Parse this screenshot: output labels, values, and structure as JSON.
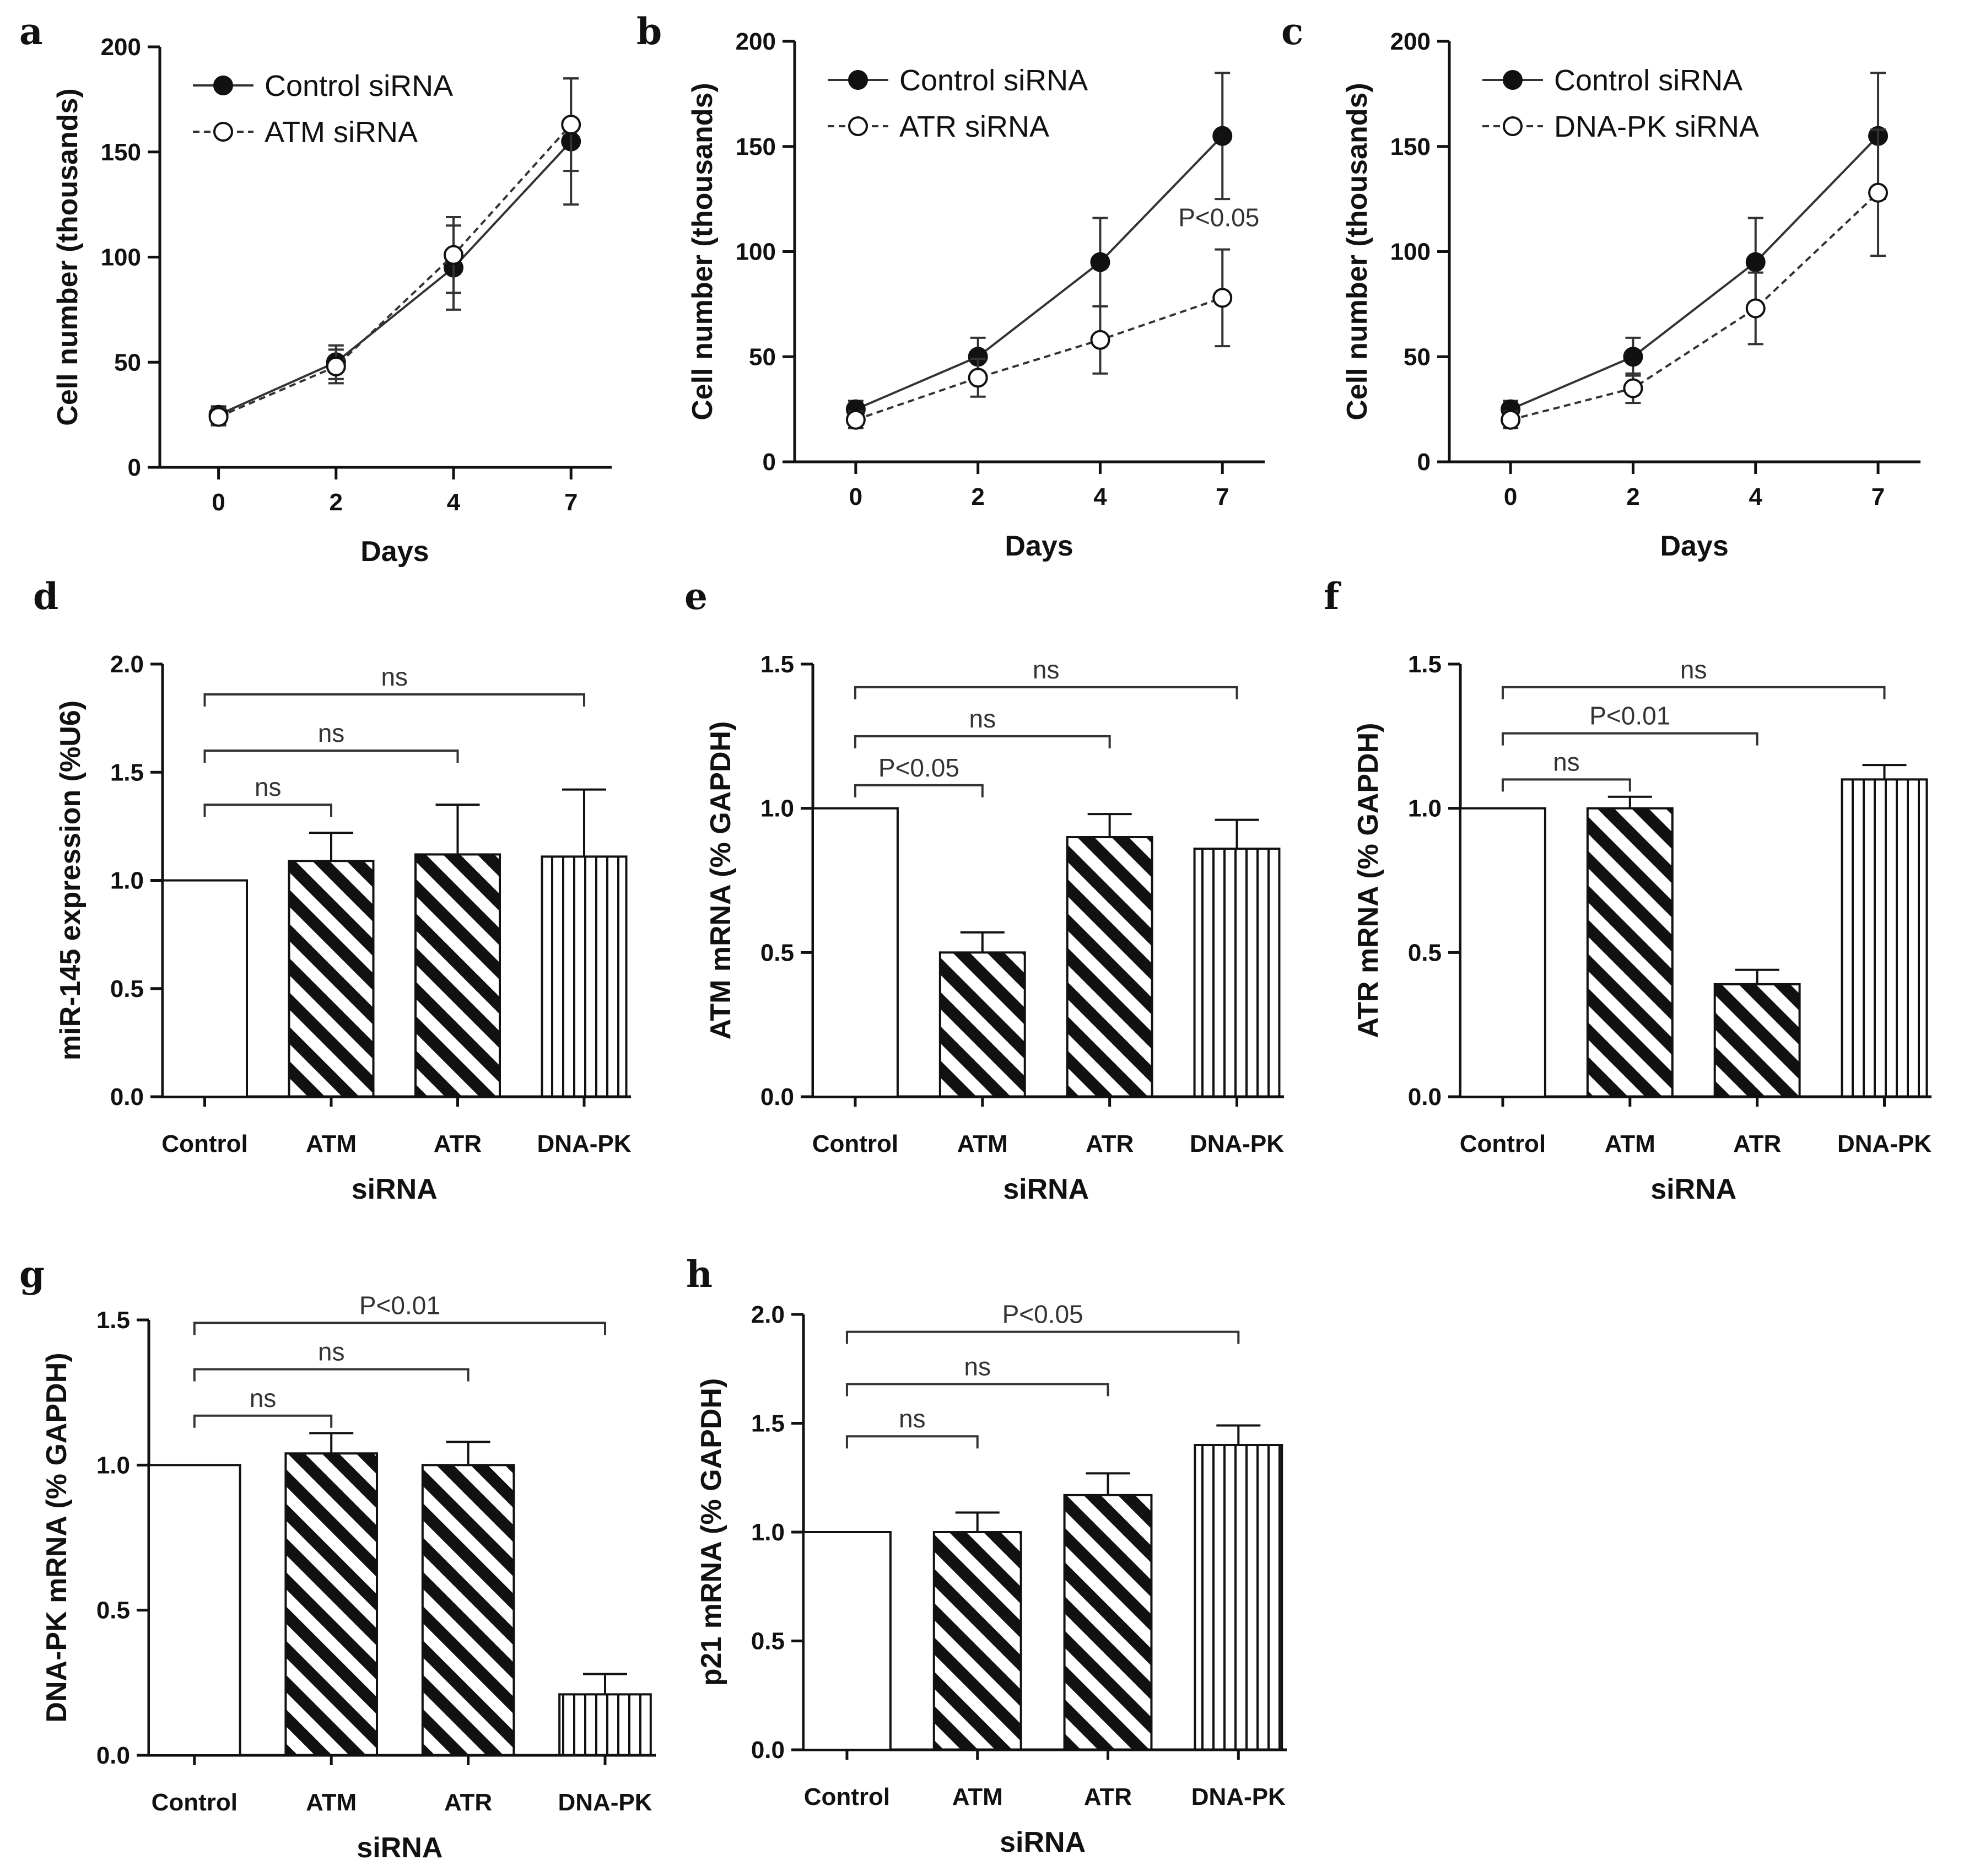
{
  "figure": {
    "colors": {
      "ink": "#111111",
      "line": "#333333",
      "background": "#ffffff"
    },
    "bar_patterns": [
      "open-bar",
      "diagonal-hatch",
      "diagonal-hatch",
      "vertical-hatch"
    ]
  },
  "chart_data": [
    {
      "panel": "a",
      "type": "line",
      "xlabel": "Days",
      "ylabel": "Cell number (thousands)",
      "categories": [
        "0",
        "2",
        "4",
        "7"
      ],
      "ylim": [
        0,
        200
      ],
      "yticks": [
        "0",
        "50",
        "100",
        "150",
        "200"
      ],
      "series": [
        {
          "name": "Control siRNA",
          "marker": "filled-circle",
          "line": "solid",
          "values": [
            25,
            50,
            95,
            155
          ],
          "errors": [
            4,
            8,
            20,
            30
          ]
        },
        {
          "name": "ATM siRNA",
          "marker": "open-circle",
          "line": "dashed",
          "values": [
            24,
            48,
            101,
            163
          ],
          "errors": [
            4,
            8,
            18,
            22
          ]
        }
      ],
      "annotations": []
    },
    {
      "panel": "b",
      "type": "line",
      "xlabel": "Days",
      "ylabel": "Cell number (thousands)",
      "categories": [
        "0",
        "2",
        "4",
        "7"
      ],
      "ylim": [
        0,
        200
      ],
      "yticks": [
        "0",
        "50",
        "100",
        "150",
        "200"
      ],
      "series": [
        {
          "name": "Control siRNA",
          "marker": "filled-circle",
          "line": "solid",
          "values": [
            25,
            50,
            95,
            155
          ],
          "errors": [
            4,
            9,
            21,
            30
          ]
        },
        {
          "name": "ATR siRNA",
          "marker": "open-circle",
          "line": "dashed",
          "values": [
            20,
            40,
            58,
            78
          ],
          "errors": [
            4,
            9,
            16,
            23
          ]
        }
      ],
      "annotations": [
        {
          "text": "P<0.05",
          "x_index": 3,
          "y": 112
        }
      ]
    },
    {
      "panel": "c",
      "type": "line",
      "xlabel": "Days",
      "ylabel": "Cell number (thousands)",
      "categories": [
        "0",
        "2",
        "4",
        "7"
      ],
      "ylim": [
        0,
        200
      ],
      "yticks": [
        "0",
        "50",
        "100",
        "150",
        "200"
      ],
      "series": [
        {
          "name": "Control siRNA",
          "marker": "filled-circle",
          "line": "solid",
          "values": [
            25,
            50,
            95,
            155
          ],
          "errors": [
            4,
            9,
            21,
            30
          ]
        },
        {
          "name": "DNA-PK siRNA",
          "marker": "open-circle",
          "line": "dashed",
          "values": [
            20,
            35,
            73,
            128
          ],
          "errors": [
            4,
            7,
            17,
            30
          ]
        }
      ],
      "annotations": []
    },
    {
      "panel": "d",
      "type": "bar",
      "xlabel": "siRNA",
      "ylabel": "miR-145 expression (%U6)",
      "categories": [
        "Control",
        "ATM",
        "ATR",
        "DNA-PK"
      ],
      "values": [
        1.0,
        1.09,
        1.12,
        1.11
      ],
      "errors": [
        0,
        0.13,
        0.23,
        0.31
      ],
      "ylim": [
        0,
        2.0
      ],
      "yticks": [
        "0.0",
        "0.5",
        "1.0",
        "1.5",
        "2.0"
      ],
      "brackets": [
        {
          "from": 0,
          "to": 1,
          "y": 1.35,
          "label": "ns"
        },
        {
          "from": 0,
          "to": 2,
          "y": 1.6,
          "label": "ns"
        },
        {
          "from": 0,
          "to": 3,
          "y": 1.86,
          "label": "ns"
        }
      ]
    },
    {
      "panel": "e",
      "type": "bar",
      "xlabel": "siRNA",
      "ylabel": "ATM mRNA (% GAPDH)",
      "categories": [
        "Control",
        "ATM",
        "ATR",
        "DNA-PK"
      ],
      "values": [
        1.0,
        0.5,
        0.9,
        0.86
      ],
      "errors": [
        0,
        0.07,
        0.08,
        0.1
      ],
      "ylim": [
        0,
        1.5
      ],
      "yticks": [
        "0.0",
        "0.5",
        "1.0",
        "1.5"
      ],
      "brackets": [
        {
          "from": 0,
          "to": 1,
          "y": 1.08,
          "label": "P<0.05"
        },
        {
          "from": 0,
          "to": 2,
          "y": 1.25,
          "label": "ns"
        },
        {
          "from": 0,
          "to": 3,
          "y": 1.42,
          "label": "ns"
        }
      ]
    },
    {
      "panel": "f",
      "type": "bar",
      "xlabel": "siRNA",
      "ylabel": "ATR mRNA (% GAPDH)",
      "categories": [
        "Control",
        "ATM",
        "ATR",
        "DNA-PK"
      ],
      "values": [
        1.0,
        1.0,
        0.39,
        1.1
      ],
      "errors": [
        0,
        0.04,
        0.05,
        0.05
      ],
      "ylim": [
        0,
        1.5
      ],
      "yticks": [
        "0.0",
        "0.5",
        "1.0",
        "1.5"
      ],
      "brackets": [
        {
          "from": 0,
          "to": 1,
          "y": 1.1,
          "label": "ns"
        },
        {
          "from": 0,
          "to": 2,
          "y": 1.26,
          "label": "P<0.01"
        },
        {
          "from": 0,
          "to": 3,
          "y": 1.42,
          "label": "ns"
        }
      ]
    },
    {
      "panel": "g",
      "type": "bar",
      "xlabel": "siRNA",
      "ylabel": "DNA-PK mRNA (% GAPDH)",
      "categories": [
        "Control",
        "ATM",
        "ATR",
        "DNA-PK"
      ],
      "values": [
        1.0,
        1.04,
        1.0,
        0.21
      ],
      "errors": [
        0,
        0.07,
        0.08,
        0.07
      ],
      "ylim": [
        0,
        1.5
      ],
      "yticks": [
        "0.0",
        "0.5",
        "1.0",
        "1.5"
      ],
      "brackets": [
        {
          "from": 0,
          "to": 1,
          "y": 1.17,
          "label": "ns"
        },
        {
          "from": 0,
          "to": 2,
          "y": 1.33,
          "label": "ns"
        },
        {
          "from": 0,
          "to": 3,
          "y": 1.49,
          "label": "P<0.01"
        }
      ]
    },
    {
      "panel": "h",
      "type": "bar",
      "xlabel": "siRNA",
      "ylabel": "p21 mRNA (% GAPDH)",
      "categories": [
        "Control",
        "ATM",
        "ATR",
        "DNA-PK"
      ],
      "values": [
        1.0,
        1.0,
        1.17,
        1.4
      ],
      "errors": [
        0,
        0.09,
        0.1,
        0.09
      ],
      "ylim": [
        0,
        2.0
      ],
      "yticks": [
        "0.0",
        "0.5",
        "1.0",
        "1.5",
        "2.0"
      ],
      "brackets": [
        {
          "from": 0,
          "to": 1,
          "y": 1.44,
          "label": "ns"
        },
        {
          "from": 0,
          "to": 2,
          "y": 1.68,
          "label": "ns"
        },
        {
          "from": 0,
          "to": 3,
          "y": 1.92,
          "label": "P<0.05"
        }
      ]
    }
  ]
}
